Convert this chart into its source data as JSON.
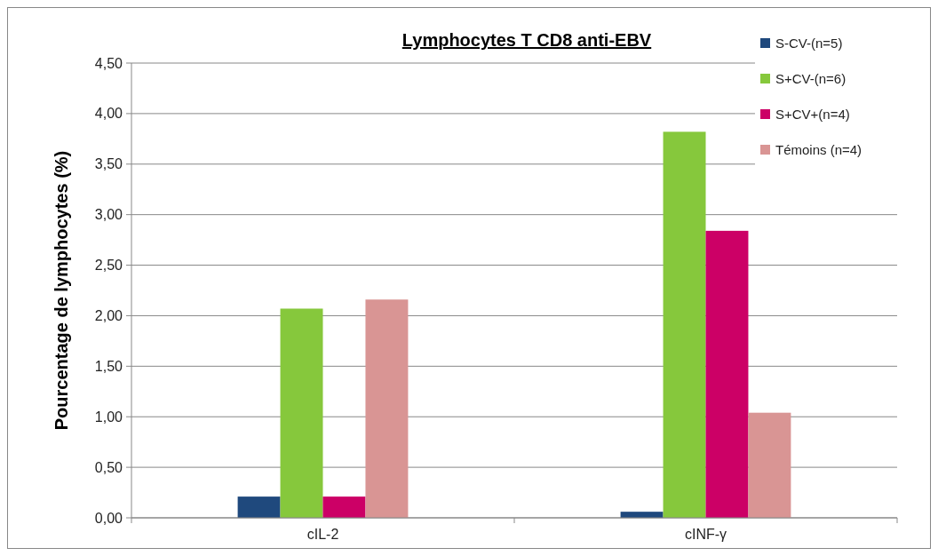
{
  "chart_data": {
    "type": "bar",
    "title": "Lymphocytes T CD8 anti-EBV",
    "ylabel": "Pourcentage de lymphocytes (%)",
    "categories": [
      "cIL-2",
      "cINF-γ"
    ],
    "series": [
      {
        "name": "S-CV-(n=5)",
        "color": "#1f497d",
        "values": [
          0.21,
          0.06
        ]
      },
      {
        "name": "S+CV-(n=6)",
        "color": "#86c83c",
        "values": [
          2.07,
          3.82
        ]
      },
      {
        "name": "S+CV+(n=4)",
        "color": "#cc0066",
        "values": [
          0.21,
          2.84
        ]
      },
      {
        "name": "Témoins (n=4)",
        "color": "#d99594",
        "values": [
          2.16,
          1.04
        ]
      }
    ],
    "ylim": [
      0,
      4.5
    ],
    "yticks": [
      {
        "value": 0,
        "label": "0,00"
      },
      {
        "value": 0.5,
        "label": "0,50"
      },
      {
        "value": 1,
        "label": "1,00"
      },
      {
        "value": 1.5,
        "label": "1,50"
      },
      {
        "value": 2,
        "label": "2,00"
      },
      {
        "value": 2.5,
        "label": "2,50"
      },
      {
        "value": 3,
        "label": "3,00"
      },
      {
        "value": 3.5,
        "label": "3,50"
      },
      {
        "value": 4,
        "label": "4,00"
      },
      {
        "value": 4.5,
        "label": "4,50"
      }
    ],
    "grid": "y",
    "legend": "top right"
  }
}
